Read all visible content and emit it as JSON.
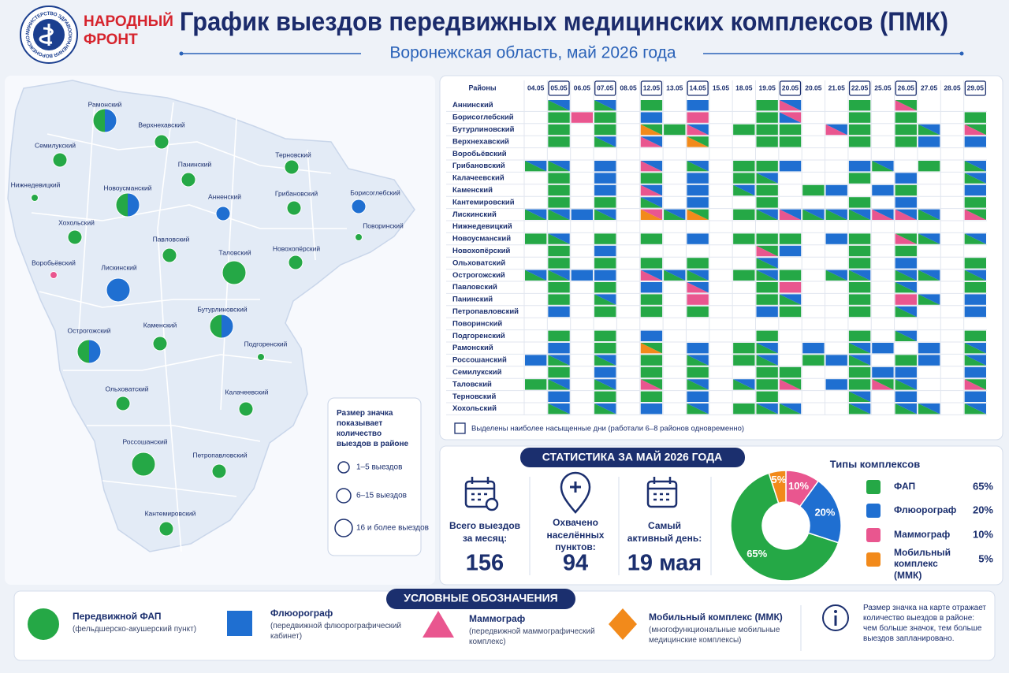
{
  "header": {
    "logo_text": "МИНИСТЕРСТВО ЗДРАВООХРАНЕНИЯ ВОРОНЕЖСКОЙ ОБЛАСТИ",
    "org": [
      "НАРОДНЫЙ",
      "ФРОНТ"
    ],
    "title": "График выездов передвижных медицинских комплексов (ПМК)",
    "subtitle": "Воронежская область, май 2026 года"
  },
  "colors": {
    "g": "#25a846",
    "b": "#1f6fd1",
    "p": "#e9568f",
    "o": "#f28a1b"
  },
  "map": {
    "regions": [
      {
        "name": "Рамонский",
        "marker": "gb",
        "size": 2
      },
      {
        "name": "Верхнехавский",
        "marker": "g",
        "size": 1
      },
      {
        "name": "Семилукский",
        "marker": "g",
        "size": 1
      },
      {
        "name": "Нижнедевицкий",
        "marker": "g",
        "size": 0
      },
      {
        "name": "Новоусманский",
        "marker": "gb",
        "size": 2
      },
      {
        "name": "Панинский",
        "marker": "g",
        "size": 1
      },
      {
        "name": "Терновский",
        "marker": "g",
        "size": 1
      },
      {
        "name": "Анненский",
        "marker": "b",
        "size": 1
      },
      {
        "name": "Грибановский",
        "marker": "g",
        "size": 1
      },
      {
        "name": "Борисоглебский",
        "marker": "b",
        "size": 1
      },
      {
        "name": "Поворинский",
        "marker": "g",
        "size": 0
      },
      {
        "name": "Хохольский",
        "marker": "g",
        "size": 1
      },
      {
        "name": "Павловский",
        "marker": "g",
        "size": 1
      },
      {
        "name": "Таловский",
        "marker": "g",
        "size": 2
      },
      {
        "name": "Новохопёрский",
        "marker": "g",
        "size": 1
      },
      {
        "name": "Воробьёвский",
        "marker": "p",
        "size": 0
      },
      {
        "name": "Лискинский",
        "marker": "b",
        "size": 2
      },
      {
        "name": "Бутурлиновский",
        "marker": "gb",
        "size": 2
      },
      {
        "name": "Острогожский",
        "marker": "gb",
        "size": 2
      },
      {
        "name": "Каменский",
        "marker": "g",
        "size": 1
      },
      {
        "name": "Подгоренский",
        "marker": "g",
        "size": 0
      },
      {
        "name": "Ольховатский",
        "marker": "g",
        "size": 1
      },
      {
        "name": "Калачеевский",
        "marker": "g",
        "size": 1
      },
      {
        "name": "Россошанский",
        "marker": "g",
        "size": 2
      },
      {
        "name": "Петропавловский",
        "marker": "g",
        "size": 1
      },
      {
        "name": "Кантемировский",
        "marker": "g",
        "size": 1
      }
    ],
    "size_legend": {
      "title": "Размер значка показывает количество выездов в районе",
      "items": [
        "1–5 выездов",
        "6–15 выездов",
        "16 и более выездов"
      ]
    }
  },
  "schedule": {
    "header": "Районы",
    "dates": [
      {
        "date": "04.05"
      },
      {
        "date": "05.05",
        "boxed": true
      },
      {
        "date": "06.05"
      },
      {
        "date": "07.05",
        "boxed": true
      },
      {
        "date": "08.05"
      },
      {
        "date": "12.05",
        "boxed": true
      },
      {
        "date": "13.05"
      },
      {
        "date": "14.05",
        "boxed": true
      },
      {
        "date": "15.05"
      },
      {
        "date": "18.05"
      },
      {
        "date": "19.05"
      },
      {
        "date": "20.05",
        "boxed": true
      },
      {
        "date": "20.05"
      },
      {
        "date": "21.05"
      },
      {
        "date": "22.05",
        "boxed": true
      },
      {
        "date": "25.05"
      },
      {
        "date": "26.05",
        "boxed": true
      },
      {
        "date": "27.05"
      },
      {
        "date": "28.05"
      },
      {
        "date": "29.05",
        "boxed": true
      }
    ],
    "rows": [
      {
        "name": "Аннинский",
        "cells": [
          null,
          "gb",
          null,
          "gb",
          null,
          "g",
          null,
          "b",
          null,
          null,
          "g",
          "pb",
          null,
          null,
          "g",
          null,
          "pg",
          null,
          null,
          null
        ]
      },
      {
        "name": "Борисоглебский",
        "cells": [
          null,
          "g",
          "p",
          "g",
          null,
          "b",
          null,
          "p",
          null,
          null,
          "g",
          "bp",
          null,
          null,
          "g",
          null,
          "g",
          null,
          null,
          "g"
        ]
      },
      {
        "name": "Бутурлиновский",
        "cells": [
          null,
          "g",
          null,
          "g",
          null,
          "og",
          "g",
          "pb",
          null,
          "g",
          "g",
          "g",
          null,
          "pb",
          "g",
          null,
          "g",
          "gb",
          null,
          "pg"
        ]
      },
      {
        "name": "Верхнехавский",
        "cells": [
          null,
          "g",
          null,
          "gb",
          null,
          "pb",
          null,
          "og",
          null,
          null,
          "g",
          "g",
          null,
          null,
          "g",
          null,
          "g",
          "b",
          null,
          "b"
        ]
      },
      {
        "name": "Воробьёвский",
        "cells": [
          null,
          null,
          null,
          null,
          null,
          null,
          null,
          null,
          null,
          null,
          null,
          null,
          null,
          null,
          null,
          null,
          null,
          null,
          null,
          null
        ]
      },
      {
        "name": "Грибановский",
        "cells": [
          "gb",
          "gb",
          null,
          "b",
          null,
          "pb",
          null,
          "gb",
          null,
          "g",
          "g",
          "b",
          null,
          null,
          "b",
          "gb",
          null,
          "g",
          null,
          "gb"
        ]
      },
      {
        "name": "Калачеевский",
        "cells": [
          null,
          "g",
          null,
          "b",
          null,
          "g",
          null,
          "b",
          null,
          "g",
          "gb",
          null,
          null,
          null,
          "g",
          null,
          "b",
          null,
          null,
          "gb"
        ]
      },
      {
        "name": "Каменский",
        "cells": [
          null,
          "g",
          null,
          "b",
          null,
          "pb",
          null,
          "b",
          null,
          "gb",
          "g",
          null,
          "g",
          "b",
          null,
          "b",
          "g",
          null,
          null,
          "b"
        ]
      },
      {
        "name": "Кантемировский",
        "cells": [
          null,
          "g",
          null,
          "g",
          null,
          "gb",
          null,
          "b",
          null,
          null,
          "g",
          null,
          null,
          null,
          "g",
          null,
          "b",
          null,
          null,
          "g"
        ]
      },
      {
        "name": "Лискинский",
        "cells": [
          "gb",
          "gb",
          "b",
          "gb",
          null,
          "op",
          "gb",
          "og",
          null,
          "g",
          "gb",
          "pb",
          "gb",
          "gb",
          "gb",
          "pb",
          "pb",
          "gb",
          null,
          "pg"
        ]
      },
      {
        "name": "Нижнедевицкий",
        "cells": [
          null,
          null,
          null,
          null,
          null,
          null,
          null,
          null,
          null,
          null,
          null,
          null,
          null,
          null,
          null,
          null,
          null,
          null,
          null,
          null
        ]
      },
      {
        "name": "Новоусманский",
        "cells": [
          "g",
          "gb",
          null,
          "g",
          null,
          "g",
          null,
          "b",
          null,
          "g",
          "g",
          "g",
          null,
          "b",
          "g",
          null,
          "pg",
          "gb",
          null,
          "gb"
        ]
      },
      {
        "name": "Новохопёрский",
        "cells": [
          null,
          "g",
          null,
          "b",
          null,
          null,
          null,
          null,
          null,
          null,
          "pg",
          "b",
          null,
          null,
          "g",
          null,
          "g",
          null,
          null,
          null
        ]
      },
      {
        "name": "Ольховатский",
        "cells": [
          null,
          "g",
          null,
          "g",
          null,
          "g",
          null,
          "g",
          null,
          null,
          "gb",
          null,
          null,
          null,
          "g",
          null,
          "b",
          null,
          null,
          "g"
        ]
      },
      {
        "name": "Острогожский",
        "cells": [
          "gb",
          "gb",
          "b",
          "b",
          null,
          "pb",
          "gb",
          "gb",
          null,
          "g",
          "gb",
          "g",
          null,
          "gb",
          "gb",
          null,
          "gb",
          "gb",
          null,
          "gb"
        ]
      },
      {
        "name": "Павловский",
        "cells": [
          null,
          "g",
          null,
          "g",
          null,
          "b",
          null,
          "pb",
          null,
          null,
          "g",
          "p",
          null,
          null,
          "g",
          null,
          "gb",
          null,
          null,
          "g"
        ]
      },
      {
        "name": "Панинский",
        "cells": [
          null,
          "g",
          null,
          "gb",
          null,
          "g",
          null,
          "p",
          null,
          null,
          "g",
          "gb",
          null,
          null,
          "g",
          null,
          "p",
          "gb",
          null,
          "b"
        ]
      },
      {
        "name": "Петропавловский",
        "cells": [
          null,
          "b",
          null,
          "g",
          null,
          "g",
          null,
          "g",
          null,
          null,
          "b",
          "g",
          null,
          null,
          "g",
          null,
          "gb",
          null,
          null,
          "b"
        ]
      },
      {
        "name": "Поворинский",
        "cells": [
          null,
          null,
          null,
          null,
          null,
          null,
          null,
          null,
          null,
          null,
          null,
          null,
          null,
          null,
          null,
          null,
          null,
          null,
          null,
          null
        ]
      },
      {
        "name": "Подгоренский",
        "cells": [
          null,
          "g",
          null,
          "g",
          null,
          "b",
          null,
          null,
          null,
          null,
          "g",
          null,
          null,
          null,
          "g",
          null,
          "gb",
          null,
          null,
          "g"
        ]
      },
      {
        "name": "Рамонский",
        "cells": [
          null,
          "b",
          null,
          "g",
          null,
          "og",
          null,
          "b",
          null,
          "g",
          "gb",
          null,
          "b",
          null,
          "gb",
          "b",
          null,
          "b",
          null,
          "gb"
        ]
      },
      {
        "name": "Россошанский",
        "cells": [
          "b",
          "gb",
          null,
          "gb",
          null,
          "g",
          null,
          "gb",
          null,
          "g",
          "gb",
          null,
          "g",
          "b",
          "gb",
          null,
          "g",
          "b",
          null,
          "gb"
        ]
      },
      {
        "name": "Семилукский",
        "cells": [
          null,
          "g",
          null,
          "b",
          null,
          "g",
          null,
          "g",
          null,
          null,
          "g",
          "g",
          null,
          null,
          "g",
          "b",
          "b",
          null,
          null,
          "b"
        ]
      },
      {
        "name": "Таловский",
        "cells": [
          "g",
          "gb",
          null,
          "gb",
          null,
          "pg",
          null,
          "gb",
          null,
          "gb",
          "g",
          "pg",
          null,
          "b",
          "g",
          "pg",
          "gb",
          null,
          null,
          "pg"
        ]
      },
      {
        "name": "Терновский",
        "cells": [
          null,
          "b",
          null,
          "g",
          null,
          "g",
          null,
          "b",
          null,
          null,
          "g",
          null,
          null,
          null,
          "gb",
          null,
          "b",
          null,
          null,
          "b"
        ]
      },
      {
        "name": "Хохольский",
        "cells": [
          null,
          "gb",
          null,
          "gb",
          null,
          "b",
          null,
          "gb",
          null,
          "g",
          "gb",
          "gb",
          null,
          null,
          "gb",
          null,
          "gb",
          "gb",
          null,
          "gb"
        ]
      }
    ],
    "note": "Выделены наиболее насыщенные дни (работали 6–8 районов одновременно)"
  },
  "stats": {
    "title": "СТАТИСТИКА ЗА МАЙ 2026 ГОДА",
    "items": [
      {
        "label": "Всего выездов за месяц:",
        "value": 156
      },
      {
        "label": "Охвачено населённых пунктов:",
        "value": 94
      },
      {
        "label": "Самый активный день:",
        "value": "19 мая"
      }
    ]
  },
  "chart_data": {
    "type": "donut",
    "title": "Типы комплексов",
    "categories": [
      "ФАП",
      "Флюорограф",
      "Маммограф",
      "Мобильный комплекс (ММК)"
    ],
    "values": [
      65,
      20,
      10,
      5
    ],
    "value_labels": [
      "65%",
      "20%",
      "10%",
      "5%"
    ],
    "colors": [
      "#25a846",
      "#1f6fd1",
      "#e9568f",
      "#f28a1b"
    ]
  },
  "legend": {
    "title": "УСЛОВНЫЕ ОБОЗНАЧЕНИЯ",
    "items": [
      {
        "title": "Передвижной ФАП",
        "description": "(фельдшерско-акушерский пункт)"
      },
      {
        "title": "Флюорограф",
        "description": "(передвижной флюорографический кабинет)"
      },
      {
        "title": "Маммограф",
        "description": "(передвижной маммографический комплекс)"
      },
      {
        "title": "Мобильный комплекс (ММК)",
        "description": "(многофункциональные мобильные медицинские комплексы)"
      }
    ],
    "info": "Размер значка на карте отражает количество выездов в районе: чем больше значок, тем больше выездов запланировано."
  }
}
